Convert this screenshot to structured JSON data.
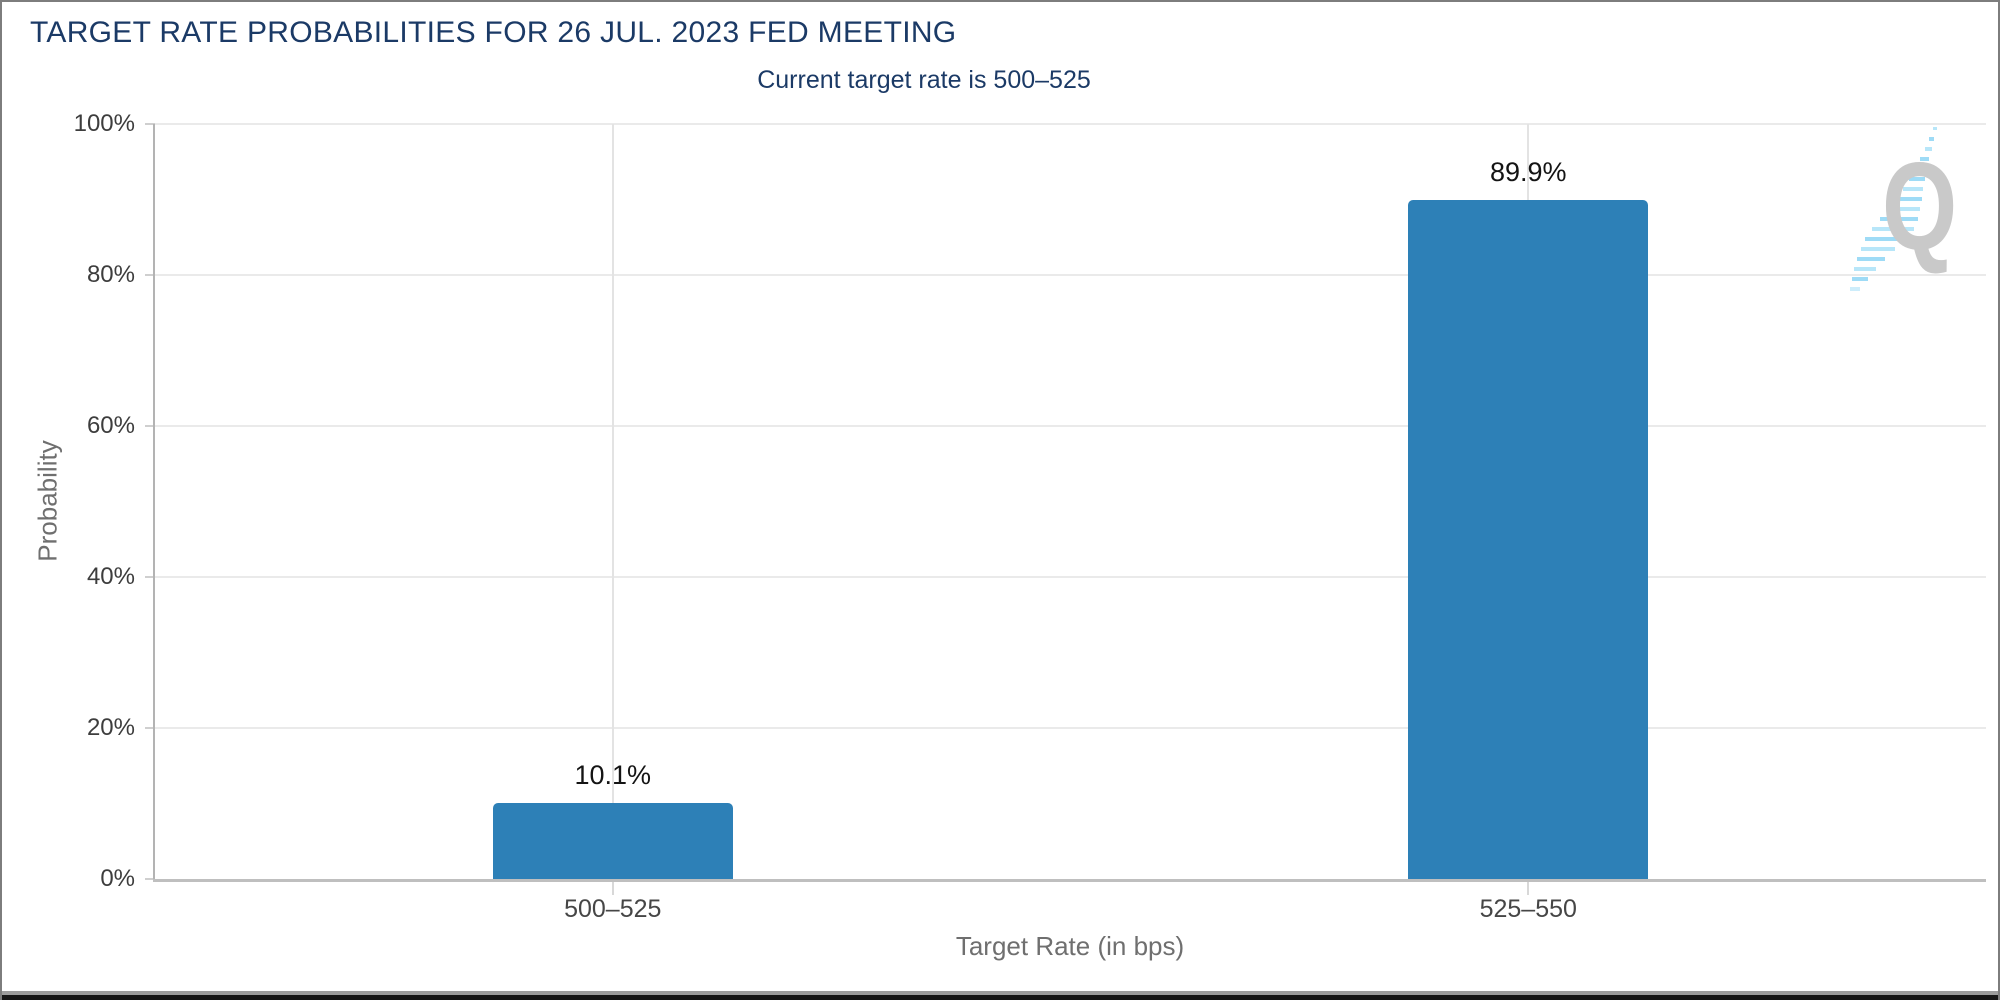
{
  "chart_data": {
    "type": "bar",
    "title": "TARGET RATE PROBABILITIES FOR 26 JUL. 2023 FED MEETING",
    "subtitle": "Current target rate is 500–525",
    "categories": [
      "500–525",
      "525–550"
    ],
    "values": [
      10.1,
      89.9
    ],
    "value_labels": [
      "10.1%",
      "89.9%"
    ],
    "xlabel": "Target Rate (in bps)",
    "ylabel": "Probability",
    "ylim": [
      0,
      100
    ],
    "yticks": [
      "0%",
      "20%",
      "40%",
      "60%",
      "80%",
      "100%"
    ],
    "grid": true,
    "legend": false,
    "bar_color": "#2d80b7"
  },
  "watermark": {
    "letter": "Q"
  },
  "colors": {
    "title_navy": "#1b3a66",
    "bar_blue": "#2d80b7",
    "axis_label_gray": "#3d3d3d",
    "axis_title_gray": "#6f6f6f",
    "watermark_gray": "#c9c9c9",
    "watermark_blue": "#a5ddf6"
  }
}
